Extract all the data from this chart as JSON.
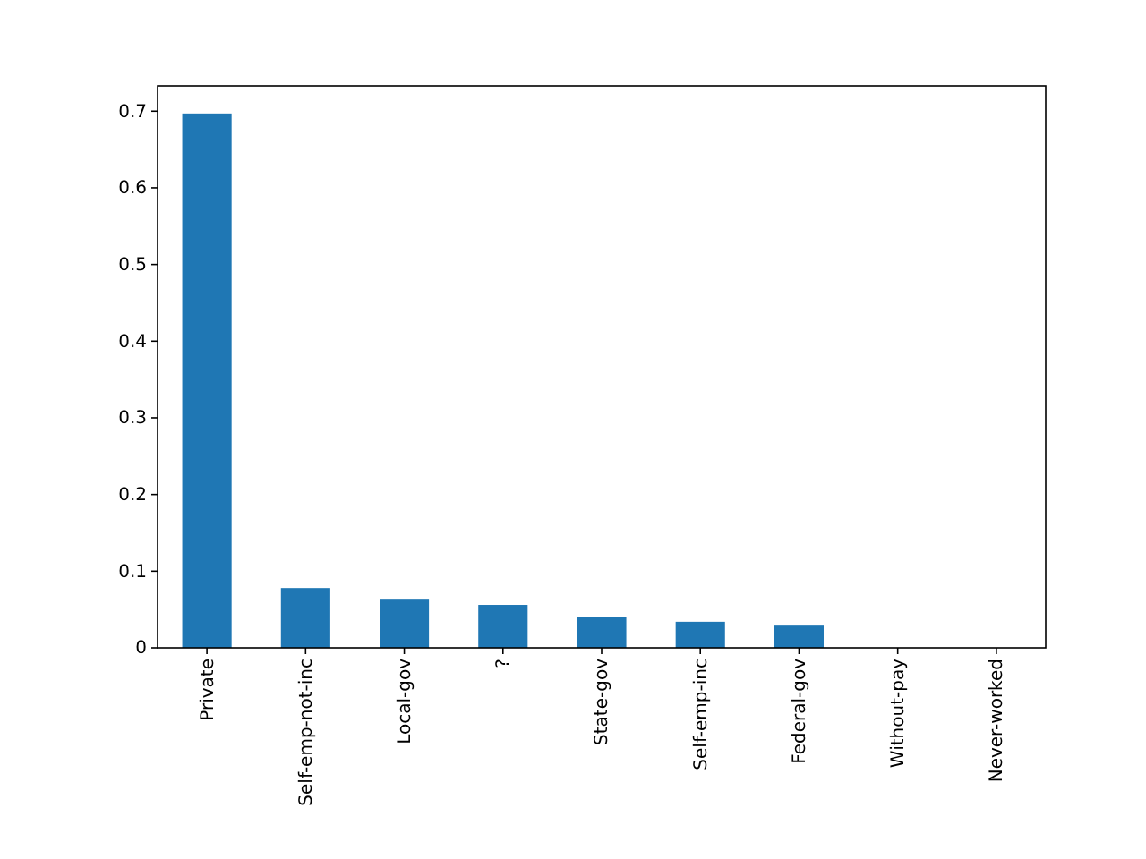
{
  "chart_data": {
    "type": "bar",
    "categories": [
      "Private",
      "Self-emp-not-inc",
      "Local-gov",
      "?",
      "State-gov",
      "Self-emp-inc",
      "Federal-gov",
      "Without-pay",
      "Never-worked"
    ],
    "series": [
      {
        "color": "#1f77b4",
        "values": [
          0.697,
          0.078,
          0.064,
          0.056,
          0.04,
          0.034,
          0.029,
          0.0,
          0.0
        ]
      }
    ],
    "ylim": [
      0,
      0.733
    ],
    "yticks": [
      0,
      0.1,
      0.2,
      0.3,
      0.4,
      0.5,
      0.6,
      0.7
    ],
    "grid": false
  }
}
